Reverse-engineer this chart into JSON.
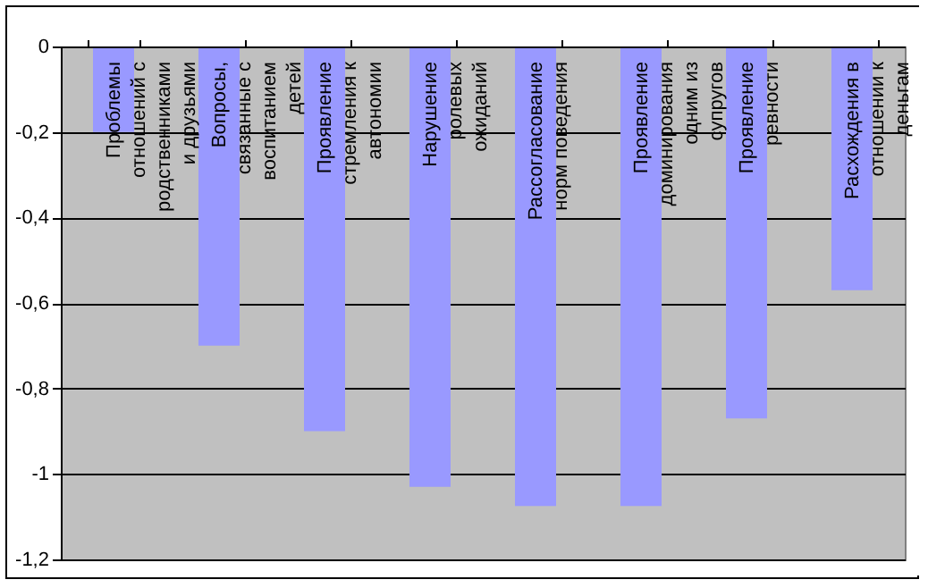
{
  "chart_data": {
    "type": "bar",
    "categories": [
      "Проблемы отношений с родственниками и друзьями",
      "Вопросы, связанные с воспитанием детей",
      "Проявление стремления к автономии",
      "Нарушение ролевых ожиданий",
      "Рассогласование норм поведения",
      "Проявление доминирования одним из супругов",
      "Проявление ревности",
      "Расхождения в отношении к деньгам"
    ],
    "values": [
      -0.2,
      -0.7,
      -0.9,
      -1.03,
      -1.075,
      -1.075,
      -0.87,
      -0.57
    ],
    "color": "#9999ff",
    "ylim": [
      -1.2,
      0
    ],
    "yticks": [
      {
        "value": -1.2,
        "label": "-1,2"
      },
      {
        "value": -1,
        "label": "-1"
      },
      {
        "value": -0.8,
        "label": "-0,8"
      },
      {
        "value": -0.6,
        "label": "-0,6"
      },
      {
        "value": -0.4,
        "label": "-0,4"
      },
      {
        "value": -0.2,
        "label": "-0,2"
      },
      {
        "value": 0,
        "label": "0"
      }
    ],
    "grid": "y",
    "legend": false
  }
}
